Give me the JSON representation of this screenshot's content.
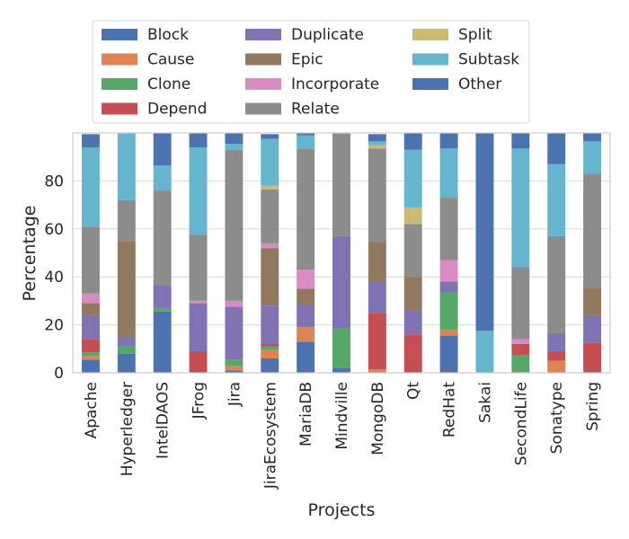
{
  "chart_data": {
    "type": "bar",
    "stacked": true,
    "title": "",
    "xlabel": "Projects",
    "ylabel": "Percentage",
    "ylim": [
      0,
      100
    ],
    "yticks": [
      0,
      20,
      40,
      60,
      80
    ],
    "grid": "horizontal",
    "legend_position": "top",
    "categories": [
      "Apache",
      "Hyperledger",
      "IntelDAOS",
      "JFrog",
      "Jira",
      "JiraEcosystem",
      "MariaDB",
      "Mindville",
      "MongoDB",
      "Qt",
      "RedHat",
      "Sakai",
      "SecondLife",
      "Sonatype",
      "Spring"
    ],
    "series": [
      {
        "name": "Block",
        "color": "#4c72b0",
        "values": [
          5.5,
          8,
          25.5,
          0,
          1,
          6,
          13,
          2,
          0,
          0,
          15.5,
          0,
          0,
          0,
          0
        ]
      },
      {
        "name": "Cause",
        "color": "#dd8452",
        "values": [
          1.5,
          0,
          0,
          0,
          2,
          3.5,
          6,
          0,
          1.5,
          0,
          2.5,
          0,
          0,
          5,
          0
        ]
      },
      {
        "name": "Clone",
        "color": "#55a868",
        "values": [
          1.5,
          3,
          1.5,
          0,
          2.5,
          1.5,
          0,
          16.5,
          0,
          0,
          15.5,
          0,
          7.5,
          0,
          0
        ]
      },
      {
        "name": "Depend",
        "color": "#c44e52",
        "values": [
          5.5,
          0,
          0,
          9,
          0,
          1,
          0,
          0,
          23.5,
          16,
          0,
          0,
          4.5,
          4,
          12.5
        ]
      },
      {
        "name": "Duplicate",
        "color": "#8172b3",
        "values": [
          10,
          4,
          9.5,
          20,
          22,
          16,
          9.5,
          38.5,
          13,
          10,
          4.5,
          0,
          0,
          7.5,
          11.5
        ]
      },
      {
        "name": "Epic",
        "color": "#937860",
        "values": [
          5,
          40,
          0,
          0,
          0,
          24,
          6.5,
          0,
          16.5,
          14,
          0,
          0,
          0,
          0,
          11.5
        ]
      },
      {
        "name": "Incorporate",
        "color": "#da8bc3",
        "values": [
          4,
          0,
          0,
          1,
          2.5,
          2,
          8,
          0,
          0,
          0,
          9,
          0,
          2,
          0,
          0
        ]
      },
      {
        "name": "Relate",
        "color": "#8c8c8c",
        "values": [
          28,
          17,
          39.5,
          27.5,
          63,
          22.5,
          50.5,
          43,
          39,
          22,
          26,
          0,
          30,
          40.5,
          47.5
        ]
      },
      {
        "name": "Split",
        "color": "#ccb974",
        "values": [
          0,
          0,
          0,
          0,
          0,
          1.5,
          0,
          0,
          1.5,
          7,
          0,
          0,
          0,
          0,
          0
        ]
      },
      {
        "name": "Subtask",
        "color": "#64b5cd",
        "values": [
          33,
          28,
          10.5,
          36.5,
          2.5,
          19.5,
          5.5,
          0,
          1.5,
          24,
          20.5,
          17.5,
          49.5,
          30,
          13.5
        ]
      },
      {
        "name": "Other",
        "color": "#4c72b0",
        "values": [
          5.5,
          0,
          13.5,
          6,
          4.5,
          2,
          1,
          0,
          3,
          7,
          6.5,
          82.5,
          6.5,
          13,
          3.5
        ]
      }
    ]
  }
}
